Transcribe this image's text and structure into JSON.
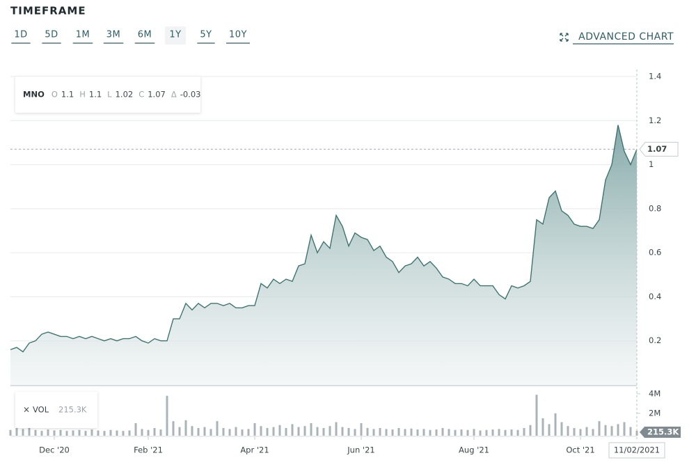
{
  "timeframe": {
    "title": "TIMEFRAME",
    "options": [
      "1D",
      "5D",
      "1M",
      "3M",
      "6M",
      "1Y",
      "5Y",
      "10Y"
    ],
    "selected": 5
  },
  "advanced_chart": "ADVANCED CHART",
  "chart_data": {
    "type": "area",
    "symbol": "MNO",
    "color": "#3d7470",
    "ohlc": [
      {
        "label": "O",
        "value": 1.1
      },
      {
        "label": "H",
        "value": 1.1
      },
      {
        "label": "L",
        "value": 1.02
      },
      {
        "label": "C",
        "value": 1.07
      },
      {
        "label": "Δ",
        "value": -0.03
      }
    ],
    "values": [
      0.16,
      0.17,
      0.15,
      0.19,
      0.2,
      0.23,
      0.24,
      0.23,
      0.22,
      0.22,
      0.21,
      0.22,
      0.21,
      0.22,
      0.21,
      0.2,
      0.21,
      0.2,
      0.21,
      0.21,
      0.22,
      0.2,
      0.19,
      0.21,
      0.2,
      0.2,
      0.3,
      0.3,
      0.37,
      0.34,
      0.37,
      0.35,
      0.37,
      0.37,
      0.36,
      0.37,
      0.35,
      0.35,
      0.36,
      0.36,
      0.46,
      0.44,
      0.48,
      0.46,
      0.48,
      0.47,
      0.54,
      0.55,
      0.68,
      0.6,
      0.65,
      0.62,
      0.77,
      0.72,
      0.63,
      0.69,
      0.67,
      0.66,
      0.61,
      0.63,
      0.58,
      0.56,
      0.51,
      0.54,
      0.55,
      0.58,
      0.54,
      0.56,
      0.53,
      0.49,
      0.48,
      0.46,
      0.46,
      0.45,
      0.48,
      0.45,
      0.45,
      0.45,
      0.41,
      0.39,
      0.45,
      0.44,
      0.45,
      0.47,
      0.75,
      0.73,
      0.85,
      0.88,
      0.79,
      0.77,
      0.73,
      0.72,
      0.72,
      0.71,
      0.75,
      0.93,
      1.0,
      1.18,
      1.06,
      1.0,
      1.07
    ],
    "ylim": [
      0,
      1.4
    ],
    "yticks": [
      0.2,
      0.4,
      0.6,
      0.8,
      1,
      1.2,
      1.4
    ],
    "xlim": [
      0,
      100
    ],
    "xticks": [
      {
        "value": 7,
        "label": "Dec '20"
      },
      {
        "value": 22,
        "label": "Feb '21"
      },
      {
        "value": 39,
        "label": "Apr '21"
      },
      {
        "value": 56,
        "label": "Jun '21"
      },
      {
        "value": 74,
        "label": "Aug '21"
      },
      {
        "value": 91,
        "label": "Oct '21"
      },
      {
        "value": 100,
        "label": "11/02/2021"
      }
    ],
    "grid": true,
    "volume": {
      "label": "VOL",
      "color": "#aab3b8",
      "values": [
        300000,
        900000,
        400000,
        500000,
        300000,
        200000,
        350000,
        250000,
        300000,
        200000,
        250000,
        300000,
        200000,
        350000,
        250000,
        200000,
        300000,
        250000,
        200000,
        250000,
        1000000,
        400000,
        300000,
        500000,
        350000,
        3800000,
        1200000,
        600000,
        1300000,
        700000,
        500000,
        600000,
        400000,
        1200000,
        500000,
        400000,
        600000,
        350000,
        400000,
        1000000,
        700000,
        500000,
        600000,
        800000,
        500000,
        900000,
        600000,
        700000,
        1000000,
        600000,
        500000,
        700000,
        1100000,
        600000,
        500000,
        400000,
        1000000,
        500000,
        400000,
        500000,
        400000,
        350000,
        500000,
        400000,
        450000,
        350000,
        400000,
        300000,
        350000,
        500000,
        400000,
        300000,
        350000,
        300000,
        400000,
        250000,
        300000,
        350000,
        400000,
        300000,
        350000,
        300000,
        500000,
        800000,
        3900000,
        1500000,
        900000,
        2000000,
        1100000,
        700000,
        500000,
        400000,
        600000,
        400000,
        1200000,
        800000,
        700000,
        900000,
        1100000,
        600000,
        215300
      ],
      "value_label": "215.3K",
      "y2lim": [
        0,
        4700000
      ],
      "y2ticks": [
        {
          "value": 2000000,
          "label": "2M"
        },
        {
          "value": 4000000,
          "label": "4M"
        }
      ]
    }
  }
}
